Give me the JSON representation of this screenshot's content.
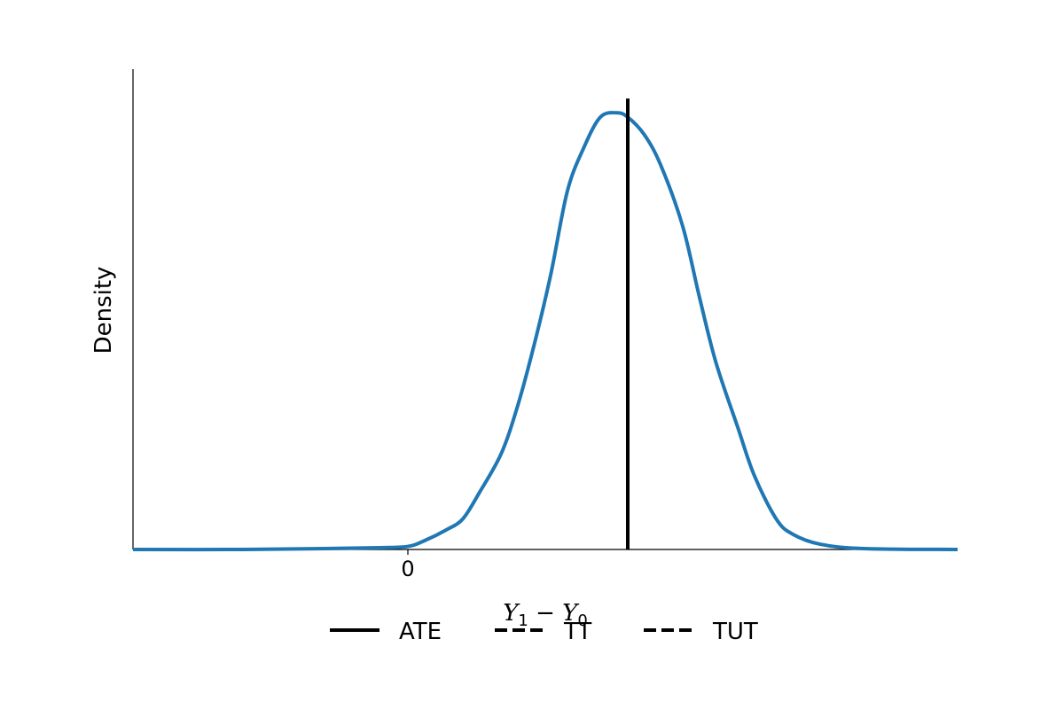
{
  "chart_data": {
    "type": "line",
    "title": "",
    "xlabel_main": "Y",
    "xlabel_sub1": "1",
    "xlabel_minus": " − ",
    "xlabel_sub0": "0",
    "ylabel": "Density",
    "xlim": [
      -5,
      10
    ],
    "ylim": [
      0,
      1.1
    ],
    "x_ticks": [
      {
        "value": 0,
        "label": "0"
      }
    ],
    "grid": false,
    "legend_position": "bottom-center",
    "series": [
      {
        "color": "#1f77b4",
        "points": [
          [
            -5.0,
            0.0
          ],
          [
            -3.0,
            0.0
          ],
          [
            -1.5,
            0.002
          ],
          [
            -0.5,
            0.004
          ],
          [
            0.0,
            0.007
          ],
          [
            0.3,
            0.02
          ],
          [
            0.7,
            0.045
          ],
          [
            1.0,
            0.07
          ],
          [
            1.3,
            0.13
          ],
          [
            1.7,
            0.22
          ],
          [
            2.0,
            0.33
          ],
          [
            2.3,
            0.47
          ],
          [
            2.6,
            0.63
          ],
          [
            2.9,
            0.82
          ],
          [
            3.2,
            0.92
          ],
          [
            3.5,
            0.99
          ],
          [
            3.8,
            1.0
          ],
          [
            4.0,
            0.99
          ],
          [
            4.3,
            0.95
          ],
          [
            4.6,
            0.88
          ],
          [
            5.0,
            0.74
          ],
          [
            5.3,
            0.58
          ],
          [
            5.6,
            0.43
          ],
          [
            6.0,
            0.28
          ],
          [
            6.3,
            0.17
          ],
          [
            6.7,
            0.07
          ],
          [
            7.0,
            0.035
          ],
          [
            7.5,
            0.012
          ],
          [
            8.3,
            0.002
          ],
          [
            10.0,
            0.0
          ]
        ]
      }
    ],
    "vlines": [
      {
        "name": "ATE",
        "x": 4.0,
        "style": "solid",
        "color": "#000000"
      },
      {
        "name": "TT",
        "x": 4.0,
        "style": "dashed",
        "color": "#000000"
      },
      {
        "name": "TUT",
        "x": 4.0,
        "style": "dashed",
        "color": "#000000"
      }
    ],
    "legend": [
      {
        "label": "ATE",
        "style": "solid"
      },
      {
        "label": "TT",
        "style": "dashed"
      },
      {
        "label": "TUT",
        "style": "dashed"
      }
    ]
  }
}
